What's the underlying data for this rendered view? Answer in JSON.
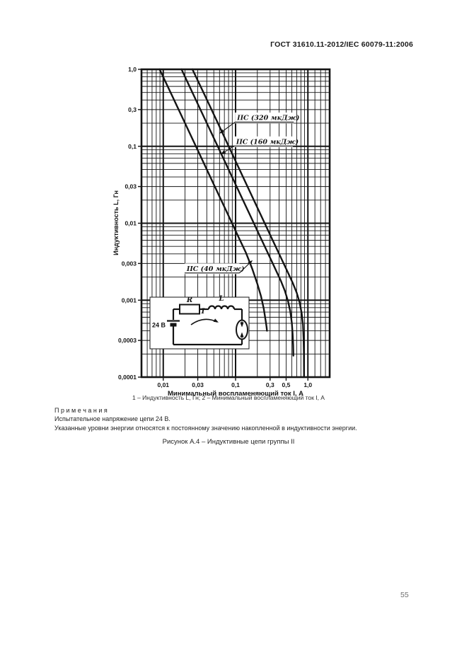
{
  "page": {
    "header": "ГОСТ 31610.11-2012/IEC 60079-11:2006",
    "page_number": "55"
  },
  "figure": {
    "legend_line": "1 – Индуктивность L, Гн; 2 – Минимальный воспламеняющий ток I, А",
    "caption": "Рисунок А.4 – Индуктивные цепи группы II"
  },
  "notes": {
    "title": "П р и м е ч а н и я",
    "lines": [
      "Испытательное напряжение цепи 24 В.",
      "Указанные уровни энергии относятся к постоянному значению накопленной в индуктивности энергии."
    ]
  },
  "colors": {
    "ink": "#141414",
    "background": "#ffffff"
  },
  "chart_data": {
    "type": "line",
    "title": "",
    "x_axis": {
      "label": "Минимальный воспламеняющий ток I, А",
      "scale": "log",
      "range": [
        0.005,
        2.0
      ],
      "ticks": [
        {
          "v": 0.01,
          "t": "0,01"
        },
        {
          "v": 0.03,
          "t": "0,03"
        },
        {
          "v": 0.1,
          "t": "0,1"
        },
        {
          "v": 0.3,
          "t": "0,3"
        },
        {
          "v": 0.5,
          "t": "0,5"
        },
        {
          "v": 1.0,
          "t": "1,0"
        }
      ]
    },
    "y_axis": {
      "label": "Индуктивность L, Гн",
      "scale": "log",
      "range": [
        0.0001,
        1.0
      ],
      "ticks": [
        {
          "v": 1.0,
          "t": "1,0"
        },
        {
          "v": 0.3,
          "t": "0,3"
        },
        {
          "v": 0.1,
          "t": "0,1"
        },
        {
          "v": 0.03,
          "t": "0,03"
        },
        {
          "v": 0.01,
          "t": "0,01"
        },
        {
          "v": 0.003,
          "t": "0,003"
        },
        {
          "v": 0.001,
          "t": "0,001"
        },
        {
          "v": 0.0003,
          "t": "0,0003"
        },
        {
          "v": 0.0001,
          "t": "0,0001"
        }
      ]
    },
    "grid": {
      "major_x": [
        0.01,
        0.1,
        1.0
      ],
      "major_y": [
        0.001,
        0.01,
        0.1,
        1.0
      ],
      "minor": "log-decade-subdivisions"
    },
    "series": [
      {
        "name": "IIC (40 мкДж)",
        "energy_uJ": 40,
        "points": [
          [
            0.0089,
            1.0
          ],
          [
            0.013,
            0.473
          ],
          [
            0.02,
            0.2
          ],
          [
            0.03,
            0.0889
          ],
          [
            0.05,
            0.032
          ],
          [
            0.08,
            0.0125
          ],
          [
            0.11,
            0.0066
          ],
          [
            0.14,
            0.00408
          ],
          [
            0.17,
            0.00255
          ],
          [
            0.2,
            0.00163
          ],
          [
            0.225,
            0.00112
          ],
          [
            0.245,
            0.00078
          ],
          [
            0.26,
            0.00055
          ],
          [
            0.268,
            0.00045
          ],
          [
            0.272,
            0.0004
          ]
        ]
      },
      {
        "name": "IIC (160 мкДж)",
        "energy_uJ": 160,
        "points": [
          [
            0.0179,
            1.0
          ],
          [
            0.026,
            0.473
          ],
          [
            0.04,
            0.2
          ],
          [
            0.06,
            0.0889
          ],
          [
            0.1,
            0.032
          ],
          [
            0.16,
            0.0125
          ],
          [
            0.22,
            0.0066
          ],
          [
            0.28,
            0.00408
          ],
          [
            0.35,
            0.00261
          ],
          [
            0.42,
            0.00181
          ],
          [
            0.48,
            0.00133
          ],
          [
            0.53,
            0.00098
          ],
          [
            0.57,
            0.00072
          ],
          [
            0.6,
            0.00051
          ],
          [
            0.615,
            0.00037
          ],
          [
            0.625,
            0.00026
          ],
          [
            0.63,
            0.00019
          ]
        ]
      },
      {
        "name": "IIC (320 мкДж)",
        "energy_uJ": 320,
        "points": [
          [
            0.0253,
            1.0
          ],
          [
            0.037,
            0.473
          ],
          [
            0.057,
            0.2
          ],
          [
            0.085,
            0.0889
          ],
          [
            0.14,
            0.0327
          ],
          [
            0.22,
            0.0132
          ],
          [
            0.32,
            0.00625
          ],
          [
            0.42,
            0.00363
          ],
          [
            0.52,
            0.00237
          ],
          [
            0.62,
            0.00166
          ],
          [
            0.7,
            0.00125
          ],
          [
            0.77,
            0.00093
          ],
          [
            0.82,
            0.00068
          ],
          [
            0.855,
            0.00048
          ],
          [
            0.872,
            0.00032
          ],
          [
            0.88,
            0.0002
          ],
          [
            0.883,
            0.00013
          ],
          [
            0.884,
            0.0001
          ]
        ]
      }
    ],
    "annotations": [
      {
        "text": "IIC (320 мкДж)",
        "label_at": [
          0.105,
          0.208
        ],
        "arrow_to": [
          0.0595,
          0.146
        ],
        "side": "left"
      },
      {
        "text": "IIC (160 мкДж)",
        "label_at": [
          0.102,
          0.102
        ],
        "arrow_to": [
          0.0624,
          0.0787
        ],
        "side": "left"
      },
      {
        "text": "IIC (40 мкДж)",
        "label_at": [
          0.0211,
          0.00228
        ],
        "arrow_to": [
          0.172,
          0.00331
        ],
        "side": "right"
      }
    ],
    "inset_circuit": {
      "voltage": "24 В",
      "resistor": "R",
      "inductor": "L",
      "current": "I"
    }
  }
}
